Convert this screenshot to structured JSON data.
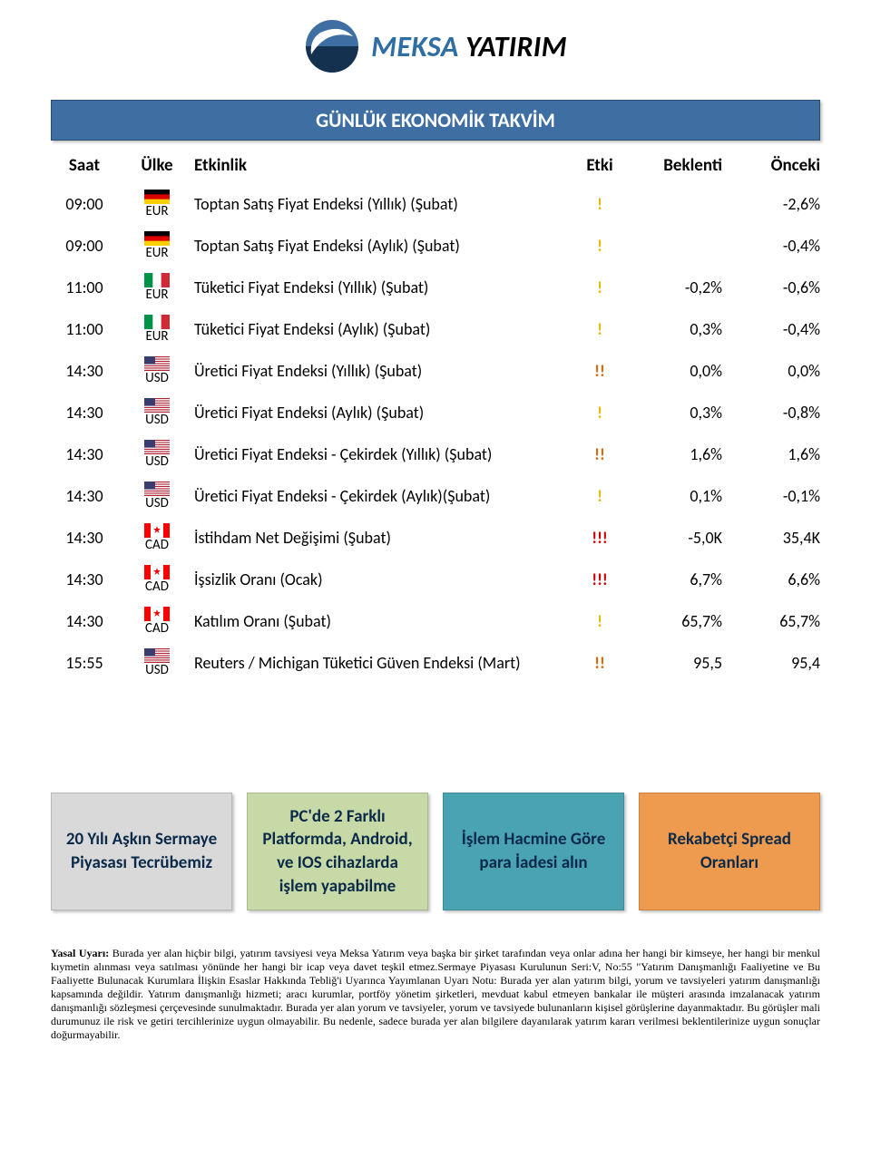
{
  "brand": {
    "name_part1": "MEKSA",
    "name_part2": " YATIRIM",
    "color1": "#2f6ea3",
    "color2": "#000000"
  },
  "header_title": "GÜNLÜK EKONOMİK TAKVİM",
  "header_bg": "#3f6fa2",
  "columns": {
    "time": "Saat",
    "country": "Ülke",
    "event": "Etkinlik",
    "impact": "Etki",
    "forecast": "Beklenti",
    "previous": "Önceki"
  },
  "impact_colors": {
    "1": "#e2b900",
    "2": "#e06600",
    "3": "#cc0000"
  },
  "flags": {
    "DE": [
      "#000000",
      "#dd0000",
      "#ffce00"
    ],
    "IT": [
      "#009246",
      "#ffffff",
      "#ce2b37"
    ],
    "US": "us",
    "CA": "ca"
  },
  "rows": [
    {
      "time": "09:00",
      "flag": "DE",
      "ccy": "EUR",
      "event": "Toptan Satış Fiyat Endeksi (Yıllık) (Şubat)",
      "impact": 1,
      "forecast": "",
      "previous": "-2,6%"
    },
    {
      "time": "09:00",
      "flag": "DE",
      "ccy": "EUR",
      "event": "Toptan Satış Fiyat Endeksi (Aylık) (Şubat)",
      "impact": 1,
      "forecast": "",
      "previous": "-0,4%"
    },
    {
      "time": "11:00",
      "flag": "IT",
      "ccy": "EUR",
      "event": "Tüketici Fiyat Endeksi (Yıllık) (Şubat)",
      "impact": 1,
      "forecast": "-0,2%",
      "previous": "-0,6%"
    },
    {
      "time": "11:00",
      "flag": "IT",
      "ccy": "EUR",
      "event": "Tüketici Fiyat Endeksi (Aylık) (Şubat)",
      "impact": 1,
      "forecast": "0,3%",
      "previous": "-0,4%"
    },
    {
      "time": "14:30",
      "flag": "US",
      "ccy": "USD",
      "event": "Üretici Fiyat Endeksi (Yıllık) (Şubat)",
      "impact": 2,
      "forecast": "0,0%",
      "previous": "0,0%"
    },
    {
      "time": "14:30",
      "flag": "US",
      "ccy": "USD",
      "event": "Üretici Fiyat Endeksi (Aylık) (Şubat)",
      "impact": 1,
      "forecast": "0,3%",
      "previous": "-0,8%"
    },
    {
      "time": "14:30",
      "flag": "US",
      "ccy": "USD",
      "event": "Üretici Fiyat Endeksi - Çekirdek (Yıllık) (Şubat)",
      "impact": 2,
      "forecast": "1,6%",
      "previous": "1,6%"
    },
    {
      "time": "14:30",
      "flag": "US",
      "ccy": "USD",
      "event": "Üretici Fiyat Endeksi - Çekirdek (Aylık)(Şubat)",
      "impact": 1,
      "forecast": "0,1%",
      "previous": "-0,1%"
    },
    {
      "time": "14:30",
      "flag": "CA",
      "ccy": "CAD",
      "event": "İstihdam Net Değişimi (Şubat)",
      "impact": 3,
      "forecast": "-5,0K",
      "previous": "35,4K"
    },
    {
      "time": "14:30",
      "flag": "CA",
      "ccy": "CAD",
      "event": "İşsizlik Oranı (Ocak)",
      "impact": 3,
      "forecast": "6,7%",
      "previous": "6,6%"
    },
    {
      "time": "14:30",
      "flag": "CA",
      "ccy": "CAD",
      "event": "Katılım Oranı (Şubat)",
      "impact": 1,
      "forecast": "65,7%",
      "previous": "65,7%"
    },
    {
      "time": "15:55",
      "flag": "US",
      "ccy": "USD",
      "event": "Reuters / Michigan Tüketici Güven Endeksi (Mart)",
      "impact": 2,
      "forecast": "95,5",
      "previous": "95,4"
    }
  ],
  "promos": [
    {
      "text": "20 Yılı Aşkın Sermaye Piyasası Tecrübemiz",
      "bg": "#d9d9d9",
      "fg": "#0b2a4a"
    },
    {
      "text": "PC'de 2 Farklı Platformda, Android, ve IOS cihazlarda işlem yapabilme",
      "bg": "#c7d9a6",
      "fg": "#0b2a4a"
    },
    {
      "text": "İşlem Hacmine Göre para İadesi alın",
      "bg": "#4aa3b0",
      "fg": "#0b2a4a"
    },
    {
      "text": "Rekabetçi Spread Oranları",
      "bg": "#ee9b4f",
      "fg": "#0b2a4a"
    }
  ],
  "disclaimer": {
    "title": "Yasal Uyarı: ",
    "body": "Burada yer alan hiçbir bilgi, yatırım tavsiyesi veya Meksa Yatırım veya başka bir şirket tarafından veya onlar adına her hangi bir kimseye, her hangi bir menkul kıymetin alınması veya satılması yönünde her hangi bir icap veya davet teşkil etmez.Sermaye Piyasası Kurulunun Seri:V, No:55 \"Yatırım Danışmanlığı Faaliyetine ve Bu Faaliyette Bulunacak Kurumlara İlişkin Esaslar Hakkında Tebliğ'i Uyarınca Yayımlanan Uyarı Notu: Burada yer alan yatırım bilgi, yorum ve tavsiyeleri yatırım danışmanlığı kapsamında değildir. Yatırım danışmanlığı hizmeti; aracı kurumlar, portföy yönetim şirketleri, mevduat kabul etmeyen bankalar ile müşteri arasında imzalanacak yatırım danışmanlığı sözleşmesi çerçevesinde sunulmaktadır. Burada yer alan yorum ve tavsiyeler, yorum ve tavsiyede bulunanların kişisel görüşlerine dayanmaktadır. Bu görüşler mali durumunuz ile risk ve getiri tercihlerinize uygun olmayabilir. Bu nedenle, sadece burada yer alan bilgilere dayanılarak yatırım kararı verilmesi beklentilerinize uygun sonuçlar doğurmayabilir."
  }
}
